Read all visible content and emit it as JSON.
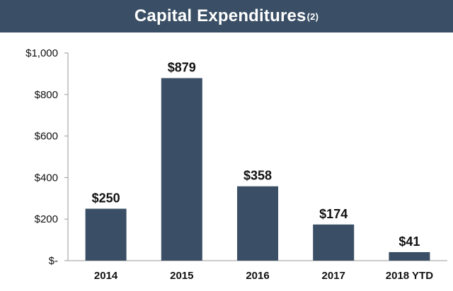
{
  "chart_data": {
    "type": "bar",
    "title": "Capital Expenditures",
    "title_superscript": "(2)",
    "categories": [
      "2014",
      "2015",
      "2016",
      "2017",
      "2018 YTD"
    ],
    "values": [
      250,
      879,
      358,
      174,
      41
    ],
    "data_labels": [
      "$250",
      "$879",
      "$358",
      "$174",
      "$41"
    ],
    "ylim": [
      0,
      1000
    ],
    "yticks": [
      0,
      200,
      400,
      600,
      800,
      1000
    ],
    "ytick_labels": [
      "$-",
      "$200",
      "$400",
      "$600",
      "$800",
      "$1,000"
    ],
    "grid": false,
    "legend": "none",
    "bar_color": "#3a4f65",
    "title_bar_color": "#3a4f65"
  }
}
